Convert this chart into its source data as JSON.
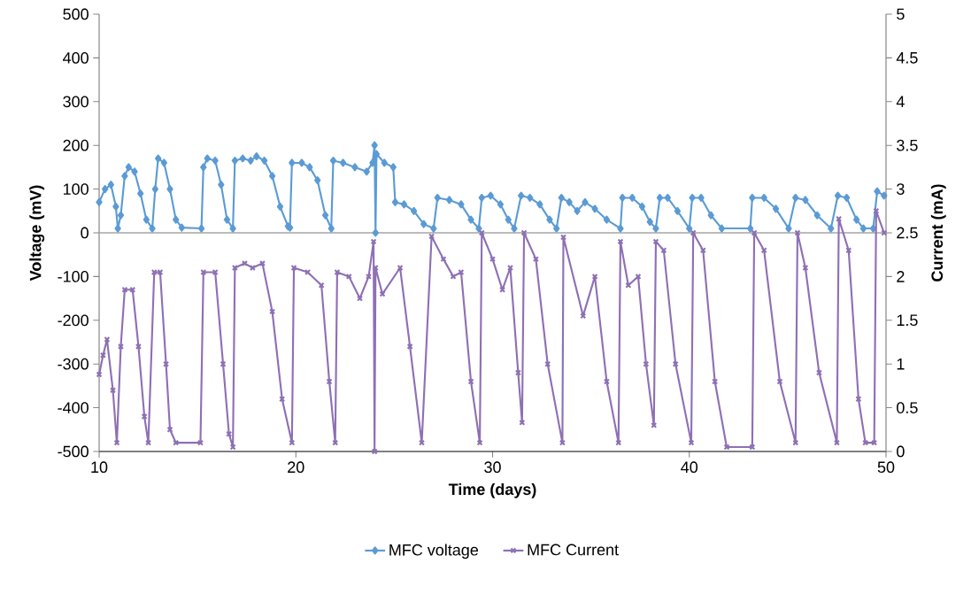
{
  "chart_data": {
    "type": "line",
    "xlabel": "Time (days)",
    "ylabel": "Voltage (mV)",
    "y2label": "Current (mA)",
    "xlim": [
      10,
      50
    ],
    "xticks": [
      10,
      20,
      30,
      40,
      50
    ],
    "ylim": [
      -500,
      500
    ],
    "yticks": [
      -500,
      -400,
      -300,
      -200,
      -100,
      0,
      100,
      200,
      300,
      400,
      500
    ],
    "y2lim": [
      0,
      5
    ],
    "y2ticks": [
      0,
      0.5,
      1,
      1.5,
      2,
      2.5,
      3,
      3.5,
      4,
      4.5,
      5
    ],
    "legend": "bottom",
    "grid": false,
    "line_style": "solid",
    "ref_lines": [
      {
        "axis": "y",
        "value": 0,
        "color": "#a6a6a6"
      }
    ],
    "series": [
      {
        "name": "MFC voltage",
        "color": "#5b9bd5",
        "marker": "diamond",
        "axis": "y",
        "x": [
          10.0,
          10.3,
          10.6,
          10.85,
          10.95,
          11.1,
          11.3,
          11.5,
          11.8,
          12.1,
          12.4,
          12.7,
          12.85,
          13.0,
          13.3,
          13.6,
          13.9,
          14.2,
          15.2,
          15.3,
          15.5,
          15.9,
          16.2,
          16.5,
          16.8,
          16.9,
          17.3,
          17.7,
          18.0,
          18.4,
          18.8,
          19.2,
          19.6,
          19.7,
          19.8,
          20.3,
          20.7,
          21.1,
          21.5,
          21.8,
          21.9,
          22.4,
          23.0,
          23.6,
          23.9,
          24.0,
          24.05,
          24.1,
          24.5,
          24.95,
          25.05,
          25.5,
          26.0,
          26.5,
          27.0,
          27.2,
          27.8,
          28.4,
          28.9,
          29.3,
          29.45,
          29.9,
          30.4,
          30.8,
          31.1,
          31.45,
          31.9,
          32.4,
          32.9,
          33.25,
          33.5,
          33.9,
          34.3,
          34.7,
          35.2,
          35.8,
          36.5,
          36.6,
          37.1,
          37.6,
          38.0,
          38.3,
          38.5,
          38.9,
          39.4,
          40.0,
          40.15,
          40.6,
          41.1,
          41.65,
          43.1,
          43.2,
          43.8,
          44.4,
          45.05,
          45.4,
          45.9,
          46.5,
          47.2,
          47.55,
          48.0,
          48.5,
          48.85,
          49.35,
          49.55,
          49.9
        ],
        "values": [
          70,
          100,
          110,
          60,
          10,
          40,
          130,
          150,
          140,
          90,
          30,
          10,
          100,
          170,
          160,
          100,
          30,
          12,
          10,
          150,
          170,
          165,
          110,
          30,
          10,
          165,
          170,
          165,
          175,
          165,
          130,
          60,
          15,
          12,
          160,
          160,
          150,
          120,
          40,
          10,
          165,
          160,
          150,
          140,
          160,
          200,
          0,
          180,
          160,
          150,
          70,
          65,
          50,
          20,
          10,
          80,
          75,
          65,
          30,
          10,
          80,
          85,
          65,
          30,
          10,
          85,
          80,
          65,
          30,
          10,
          80,
          70,
          50,
          70,
          55,
          30,
          10,
          80,
          80,
          60,
          25,
          10,
          80,
          80,
          50,
          10,
          80,
          80,
          40,
          10,
          10,
          80,
          80,
          55,
          10,
          80,
          75,
          40,
          10,
          85,
          80,
          30,
          10,
          10,
          95,
          85
        ]
      },
      {
        "name": "MFC Current",
        "color": "#8e70b4",
        "marker": "cross",
        "axis": "y2",
        "x": [
          10.0,
          10.2,
          10.4,
          10.7,
          10.9,
          11.1,
          11.3,
          11.7,
          12.0,
          12.3,
          12.5,
          12.8,
          13.1,
          13.4,
          13.6,
          13.9,
          15.15,
          15.3,
          15.9,
          16.3,
          16.6,
          16.8,
          16.9,
          17.4,
          17.8,
          18.3,
          18.8,
          19.3,
          19.8,
          19.9,
          20.6,
          21.3,
          21.7,
          22.0,
          22.1,
          22.7,
          23.25,
          23.7,
          23.95,
          24.0,
          24.05,
          24.4,
          25.3,
          25.8,
          26.4,
          26.9,
          27.5,
          28.0,
          28.4,
          28.9,
          29.35,
          29.45,
          30.0,
          30.5,
          30.9,
          31.3,
          31.5,
          31.6,
          32.2,
          32.8,
          33.55,
          33.6,
          34.6,
          35.2,
          35.8,
          36.4,
          36.5,
          36.9,
          37.4,
          37.8,
          38.2,
          38.3,
          38.7,
          39.3,
          40.1,
          40.2,
          40.7,
          41.3,
          41.9,
          43.2,
          43.3,
          43.8,
          44.6,
          45.4,
          45.5,
          45.9,
          46.6,
          47.5,
          47.6,
          48.1,
          48.6,
          48.95,
          49.4,
          49.5,
          49.9
        ],
        "values": [
          0.88,
          1.1,
          1.28,
          0.7,
          0.1,
          1.2,
          1.85,
          1.85,
          1.2,
          0.4,
          0.1,
          2.05,
          2.05,
          1.0,
          0.25,
          0.1,
          0.1,
          2.05,
          2.05,
          1.0,
          0.2,
          0.05,
          2.1,
          2.15,
          2.1,
          2.15,
          1.6,
          0.6,
          0.1,
          2.1,
          2.05,
          1.9,
          0.8,
          0.1,
          2.05,
          2.0,
          1.75,
          2.0,
          2.4,
          0.0,
          2.1,
          1.8,
          2.1,
          1.2,
          0.1,
          2.46,
          2.2,
          2.0,
          2.05,
          0.8,
          0.1,
          2.5,
          2.2,
          1.85,
          2.1,
          0.9,
          0.33,
          2.5,
          2.2,
          1.0,
          0.1,
          2.45,
          1.55,
          2.0,
          0.8,
          0.1,
          2.4,
          1.9,
          2.0,
          1.0,
          0.3,
          2.4,
          2.3,
          1.0,
          0.1,
          2.5,
          2.3,
          0.8,
          0.05,
          0.05,
          2.5,
          2.3,
          0.8,
          0.1,
          2.5,
          2.1,
          0.9,
          0.1,
          2.66,
          2.3,
          0.6,
          0.1,
          0.1,
          2.75,
          2.5
        ]
      }
    ]
  }
}
